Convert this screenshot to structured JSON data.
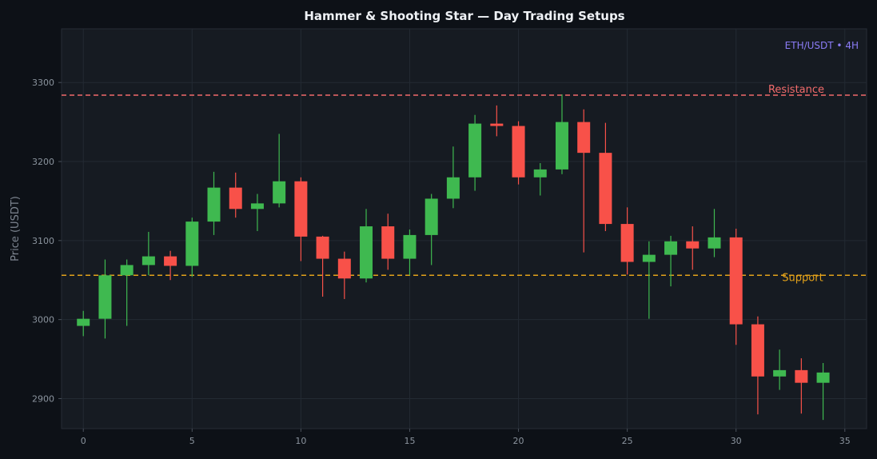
{
  "chart_data": {
    "type": "candlestick",
    "title": "Hammer & Shooting Star — Day Trading Setups",
    "xlabel": "",
    "ylabel": "Price (USDT)",
    "badge": "ETH/USDT • 4H",
    "xlim": [
      -1,
      36
    ],
    "ylim": [
      2862,
      3368
    ],
    "x_ticks": [
      0,
      5,
      10,
      15,
      20,
      25,
      30,
      35
    ],
    "y_ticks": [
      2900,
      3000,
      3100,
      3200,
      3300
    ],
    "grid": true,
    "colors": {
      "up": "#3fb950",
      "down": "#f85149",
      "resistance": "#f26b6b",
      "support": "#e3a21a",
      "background": "#161b22",
      "page": "#0d1117"
    },
    "levels": [
      {
        "name": "Resistance",
        "value": 3284
      },
      {
        "name": "Support",
        "value": 3056
      }
    ],
    "candles": [
      {
        "x": 0,
        "open": 2992,
        "high": 3011,
        "low": 2979,
        "close": 3001
      },
      {
        "x": 1,
        "open": 3001,
        "high": 3076,
        "low": 2976,
        "close": 3056
      },
      {
        "x": 2,
        "open": 3056,
        "high": 3076,
        "low": 2992,
        "close": 3069
      },
      {
        "x": 3,
        "open": 3069,
        "high": 3111,
        "low": 3056,
        "close": 3080
      },
      {
        "x": 4,
        "open": 3080,
        "high": 3087,
        "low": 3050,
        "close": 3068
      },
      {
        "x": 5,
        "open": 3068,
        "high": 3129,
        "low": 3054,
        "close": 3124
      },
      {
        "x": 6,
        "open": 3124,
        "high": 3187,
        "low": 3107,
        "close": 3167
      },
      {
        "x": 7,
        "open": 3167,
        "high": 3186,
        "low": 3129,
        "close": 3140
      },
      {
        "x": 8,
        "open": 3140,
        "high": 3159,
        "low": 3112,
        "close": 3147
      },
      {
        "x": 9,
        "open": 3147,
        "high": 3235,
        "low": 3142,
        "close": 3175
      },
      {
        "x": 10,
        "open": 3175,
        "high": 3180,
        "low": 3074,
        "close": 3105
      },
      {
        "x": 11,
        "open": 3105,
        "high": 3106,
        "low": 3029,
        "close": 3077
      },
      {
        "x": 12,
        "open": 3077,
        "high": 3086,
        "low": 3026,
        "close": 3052
      },
      {
        "x": 13,
        "open": 3052,
        "high": 3140,
        "low": 3047,
        "close": 3118
      },
      {
        "x": 14,
        "open": 3118,
        "high": 3134,
        "low": 3063,
        "close": 3077
      },
      {
        "x": 15,
        "open": 3077,
        "high": 3114,
        "low": 3056,
        "close": 3107
      },
      {
        "x": 16,
        "open": 3107,
        "high": 3159,
        "low": 3069,
        "close": 3153
      },
      {
        "x": 17,
        "open": 3153,
        "high": 3219,
        "low": 3141,
        "close": 3180
      },
      {
        "x": 18,
        "open": 3180,
        "high": 3259,
        "low": 3163,
        "close": 3248
      },
      {
        "x": 19,
        "open": 3248,
        "high": 3271,
        "low": 3232,
        "close": 3245
      },
      {
        "x": 20,
        "open": 3245,
        "high": 3251,
        "low": 3171,
        "close": 3180
      },
      {
        "x": 21,
        "open": 3180,
        "high": 3198,
        "low": 3157,
        "close": 3190
      },
      {
        "x": 22,
        "open": 3190,
        "high": 3285,
        "low": 3184,
        "close": 3250
      },
      {
        "x": 23,
        "open": 3250,
        "high": 3266,
        "low": 3085,
        "close": 3211
      },
      {
        "x": 24,
        "open": 3211,
        "high": 3249,
        "low": 3112,
        "close": 3121
      },
      {
        "x": 25,
        "open": 3121,
        "high": 3142,
        "low": 3057,
        "close": 3073
      },
      {
        "x": 26,
        "open": 3073,
        "high": 3099,
        "low": 3001,
        "close": 3082
      },
      {
        "x": 27,
        "open": 3082,
        "high": 3106,
        "low": 3042,
        "close": 3099
      },
      {
        "x": 28,
        "open": 3099,
        "high": 3118,
        "low": 3063,
        "close": 3090
      },
      {
        "x": 29,
        "open": 3090,
        "high": 3140,
        "low": 3079,
        "close": 3104
      },
      {
        "x": 30,
        "open": 3104,
        "high": 3115,
        "low": 2968,
        "close": 2994
      },
      {
        "x": 31,
        "open": 2994,
        "high": 3004,
        "low": 2880,
        "close": 2928
      },
      {
        "x": 32,
        "open": 2928,
        "high": 2962,
        "low": 2911,
        "close": 2936
      },
      {
        "x": 33,
        "open": 2936,
        "high": 2951,
        "low": 2881,
        "close": 2920
      },
      {
        "x": 34,
        "open": 2920,
        "high": 2945,
        "low": 2873,
        "close": 2933
      }
    ]
  }
}
